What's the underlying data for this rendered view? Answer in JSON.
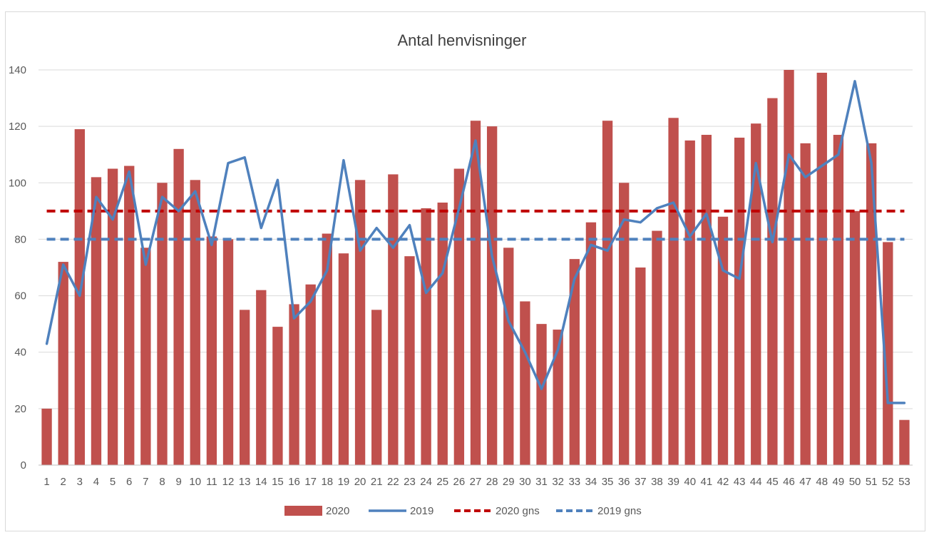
{
  "chart_data": {
    "type": "bar",
    "title": "Antal henvisninger",
    "xlabel": "",
    "ylabel": "",
    "ylim": [
      0,
      140
    ],
    "yticks": [
      0,
      20,
      40,
      60,
      80,
      100,
      120,
      140
    ],
    "grid": true,
    "legend_position": "bottom",
    "categories": [
      "1",
      "2",
      "3",
      "4",
      "5",
      "6",
      "7",
      "8",
      "9",
      "10",
      "11",
      "12",
      "13",
      "14",
      "15",
      "16",
      "17",
      "18",
      "19",
      "20",
      "21",
      "22",
      "23",
      "24",
      "25",
      "26",
      "27",
      "28",
      "29",
      "30",
      "31",
      "32",
      "33",
      "34",
      "35",
      "36",
      "37",
      "38",
      "39",
      "40",
      "41",
      "42",
      "43",
      "44",
      "45",
      "46",
      "47",
      "48",
      "49",
      "50",
      "51",
      "52",
      "53"
    ],
    "series": [
      {
        "name": "2020",
        "type": "bar",
        "color": "#c0504d",
        "values": [
          20,
          72,
          119,
          102,
          105,
          106,
          77,
          100,
          112,
          101,
          81,
          80,
          55,
          62,
          49,
          57,
          64,
          82,
          75,
          101,
          55,
          103,
          74,
          91,
          93,
          105,
          122,
          120,
          77,
          58,
          50,
          48,
          73,
          86,
          122,
          100,
          70,
          83,
          123,
          115,
          117,
          88,
          116,
          121,
          130,
          140,
          114,
          139,
          117,
          90,
          114,
          79,
          16
        ]
      },
      {
        "name": "2019",
        "type": "line",
        "color": "#4f81bd",
        "values": [
          43,
          71,
          60,
          95,
          87,
          104,
          71,
          95,
          90,
          97,
          78,
          107,
          109,
          84,
          101,
          52,
          58,
          69,
          108,
          76,
          84,
          77,
          85,
          61,
          68,
          91,
          115,
          74,
          51,
          40,
          27,
          41,
          66,
          78,
          76,
          87,
          86,
          91,
          93,
          81,
          89,
          69,
          66,
          107,
          79,
          110,
          102,
          106,
          110,
          136,
          107,
          22,
          22
        ]
      },
      {
        "name": "2020 gns",
        "type": "dashed-line",
        "color": "#c00000",
        "value": 90
      },
      {
        "name": "2019 gns",
        "type": "dashed-line",
        "color": "#4f81bd",
        "value": 80
      }
    ]
  }
}
